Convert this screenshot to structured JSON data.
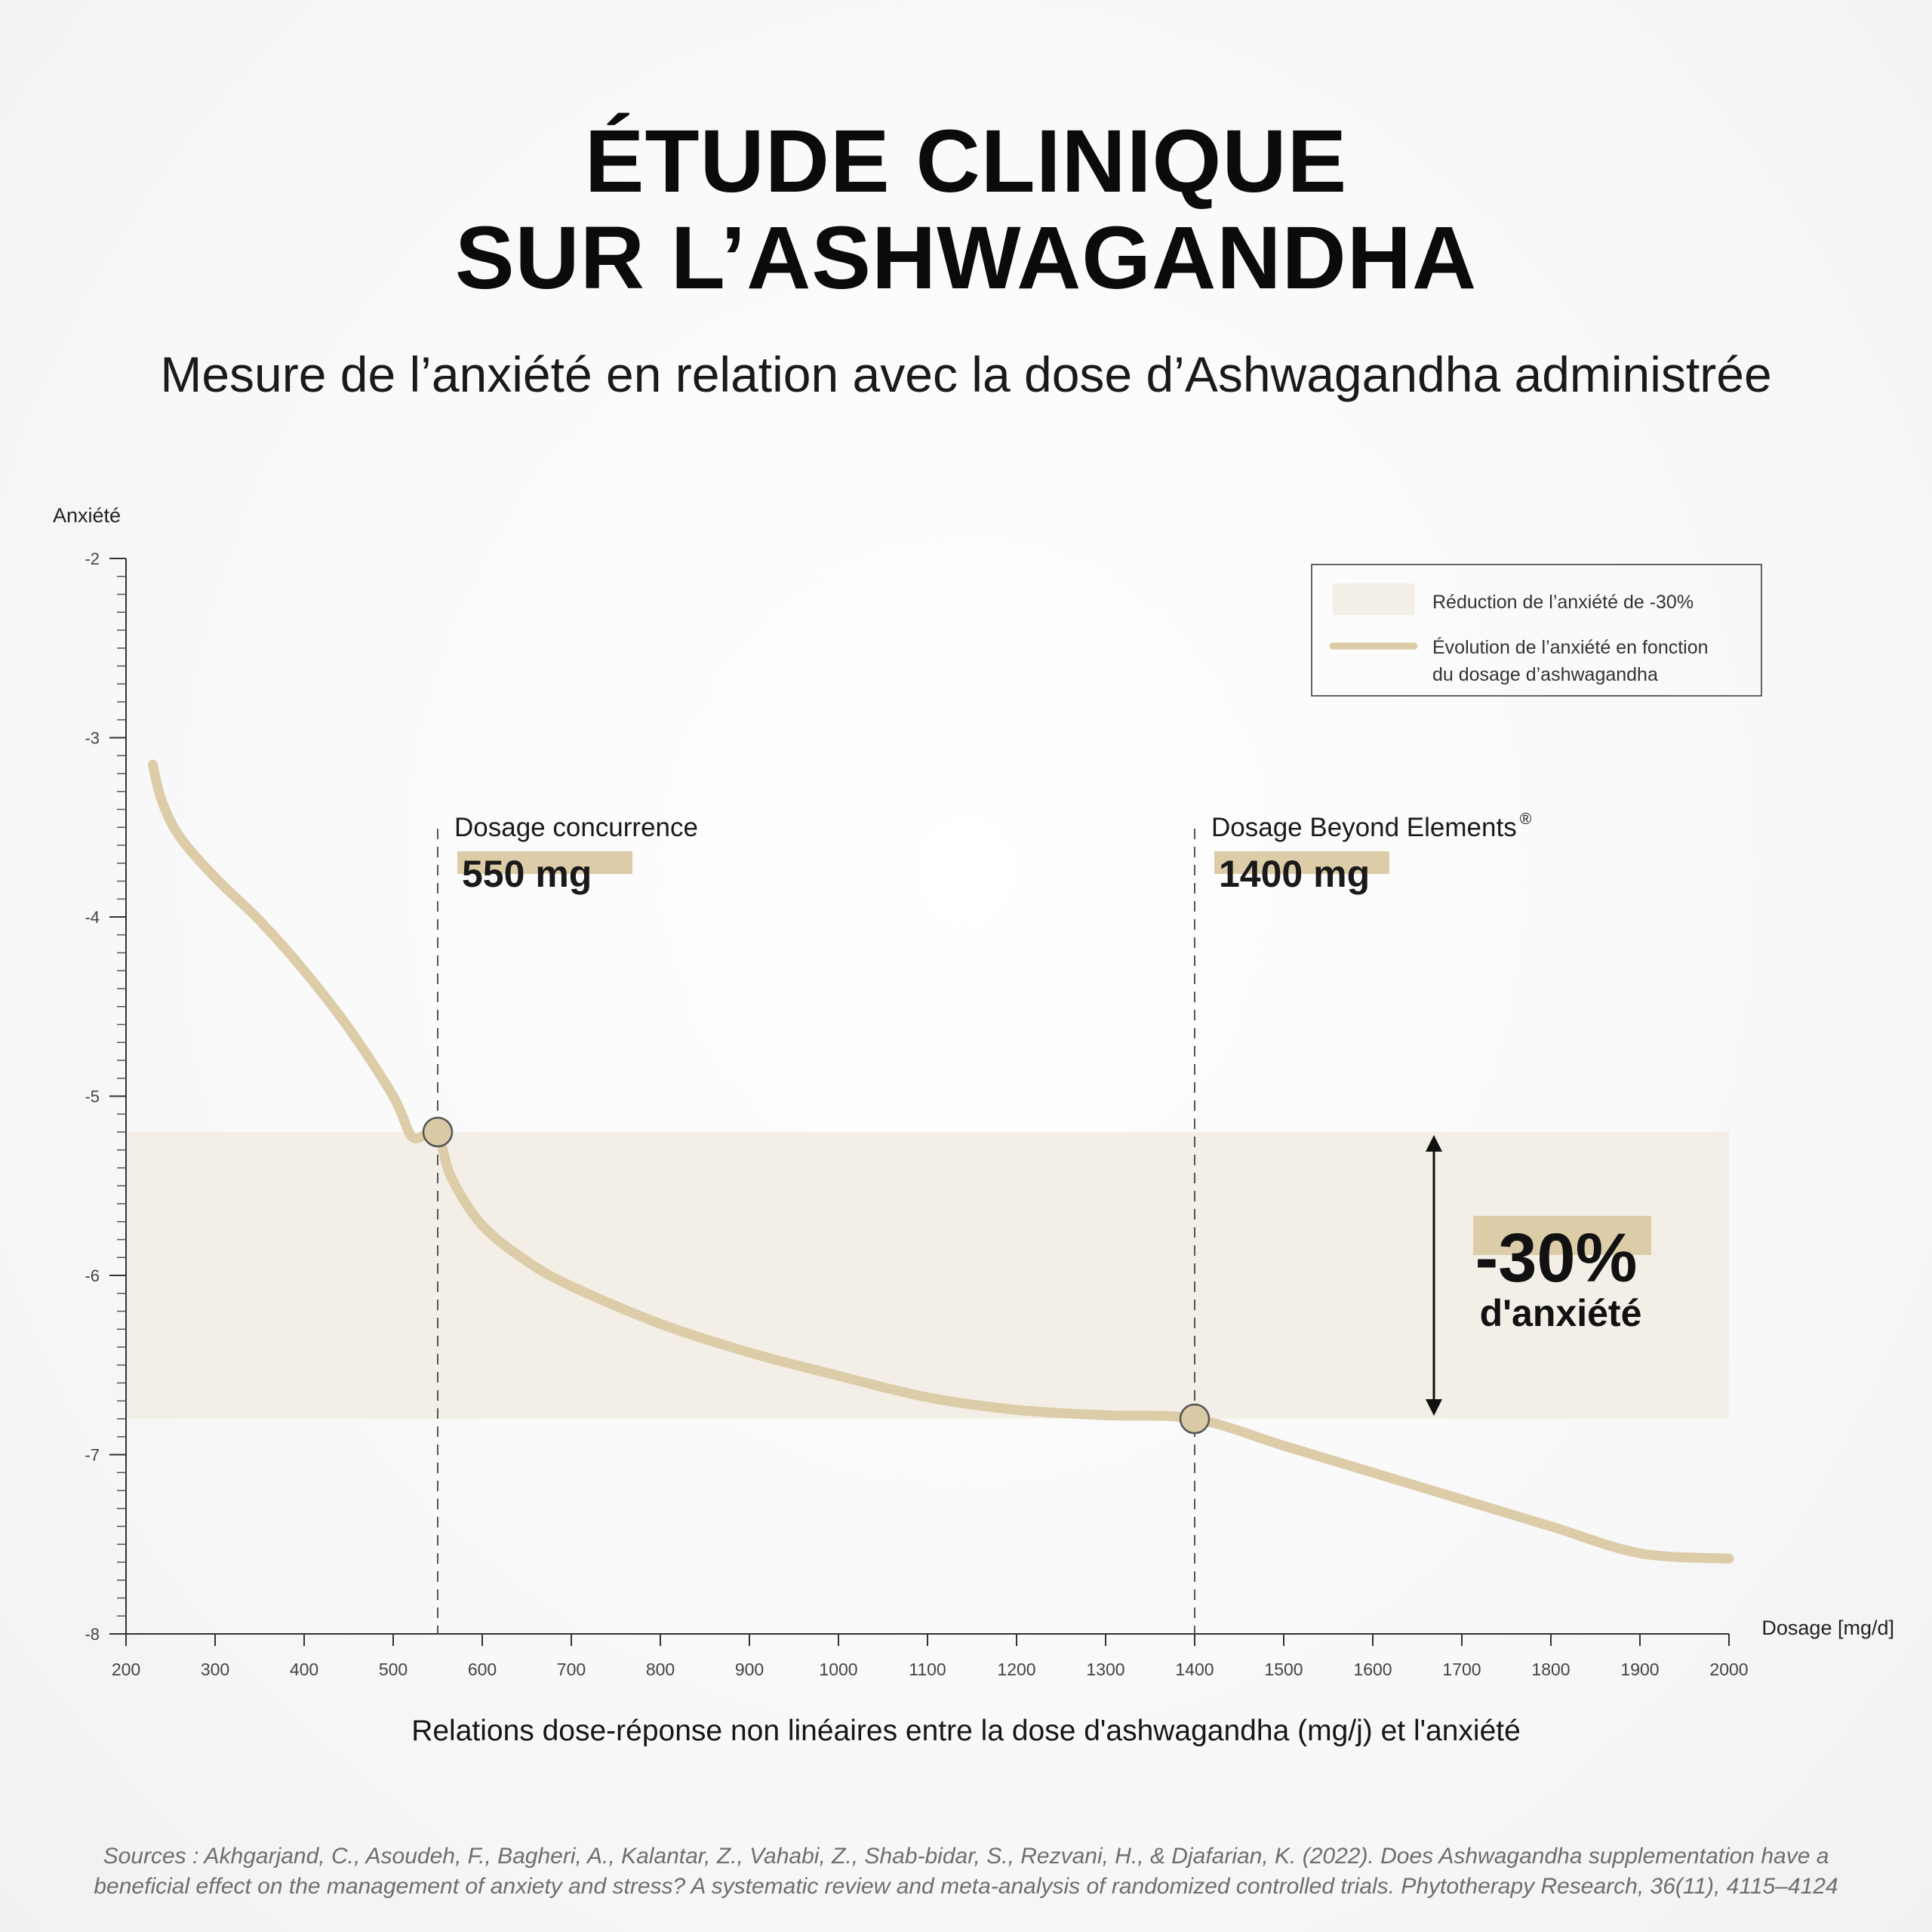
{
  "header": {
    "title_line1": "ÉTUDE CLINIQUE",
    "title_line2": "SUR L’ASHWAGANDHA",
    "subtitle": "Mesure de l’anxiété en relation avec la dose d’Ashwagandha administrée"
  },
  "chart_data": {
    "type": "line",
    "ylabel": "Anxiété",
    "xlabel": "Dosage [mg/d]",
    "xlim": [
      200,
      2000
    ],
    "ylim": [
      -8,
      -2
    ],
    "x_ticks": [
      200,
      300,
      400,
      500,
      600,
      700,
      800,
      900,
      1000,
      1100,
      1200,
      1300,
      1400,
      1500,
      1600,
      1700,
      1800,
      1900,
      2000
    ],
    "y_ticks": [
      -2,
      -3,
      -4,
      -5,
      -6,
      -7,
      -8
    ],
    "grid": false,
    "legend_position": "top-right",
    "series": [
      {
        "name": "Évolution de l’anxiété en fonction du dosage d’ashwagandha",
        "color": "#dccca8",
        "x": [
          230,
          240,
          260,
          300,
          350,
          400,
          450,
          500,
          520,
          535,
          550,
          565,
          600,
          650,
          700,
          800,
          900,
          1000,
          1100,
          1200,
          1300,
          1400,
          1500,
          1600,
          1700,
          1800,
          1900,
          2000
        ],
        "y": [
          -3.15,
          -3.35,
          -3.55,
          -3.78,
          -4.02,
          -4.3,
          -4.62,
          -5.0,
          -5.22,
          -5.22,
          -5.2,
          -5.45,
          -5.72,
          -5.92,
          -6.06,
          -6.27,
          -6.43,
          -6.56,
          -6.68,
          -6.75,
          -6.78,
          -6.8,
          -6.95,
          -7.1,
          -7.25,
          -7.4,
          -7.55,
          -7.58
        ]
      }
    ],
    "band": {
      "label": "Réduction de l’anxiété de -30%",
      "y_from": -5.2,
      "y_to": -6.8,
      "x_to": 2000,
      "color": "#f3efe7"
    },
    "markers": [
      {
        "x": 550,
        "y": -5.2,
        "label": "Dosage concurrence",
        "value": "550 mg"
      },
      {
        "x": 1400,
        "y": -6.8,
        "label": "Dosage Beyond Elements",
        "label_sup": "®",
        "value": "1400 mg"
      }
    ],
    "annotation": {
      "value": "-30%",
      "text": "d'anxiété"
    },
    "accent_color": "#dccca8",
    "caption": "Relations dose-réponse non linéaires entre la dose d'ashwagandha (mg/j) et l'anxiété"
  },
  "footer": {
    "sources_line1": "Sources : Akhgarjand, C., Asoudeh, F., Bagheri, A., Kalantar, Z., Vahabi, Z., Shab-bidar, S., Rezvani, H., & Djafarian, K. (2022). Does Ashwagandha supplementation have a",
    "sources_line2": "beneficial effect on the management of anxiety and stress? A systematic review and meta-analysis of randomized controlled trials. Phytotherapy Research, 36(11), 4115–4124"
  }
}
